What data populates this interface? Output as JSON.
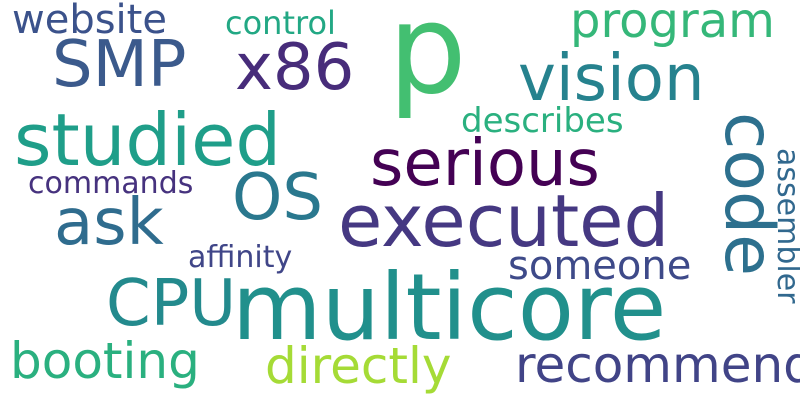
{
  "words": [
    {
      "id": "p",
      "text": "p",
      "color": "#43bf71"
    },
    {
      "id": "multicore",
      "text": "multicore",
      "color": "#21908c"
    },
    {
      "id": "executed",
      "text": "executed",
      "color": "#453882"
    },
    {
      "id": "studied",
      "text": "studied",
      "color": "#1f9e89"
    },
    {
      "id": "serious",
      "text": "serious",
      "color": "#440154"
    },
    {
      "id": "vision",
      "text": "vision",
      "color": "#26828e"
    },
    {
      "id": "sMP",
      "text": "SMP",
      "color": "#3b5a8c"
    },
    {
      "id": "x86",
      "text": "x86",
      "color": "#472c7a"
    },
    {
      "id": "code",
      "text": "code",
      "color": "#2d708e"
    },
    {
      "id": "os",
      "text": "OS",
      "color": "#2a788e"
    },
    {
      "id": "cpu",
      "text": "CPU",
      "color": "#238a8d"
    },
    {
      "id": "ask",
      "text": "ask",
      "color": "#2f6c8e"
    },
    {
      "id": "booting",
      "text": "booting",
      "color": "#2ab07f"
    },
    {
      "id": "directly",
      "text": "directly",
      "color": "#a5db36"
    },
    {
      "id": "recommend",
      "text": "recommend",
      "color": "#414487"
    },
    {
      "id": "program",
      "text": "program",
      "color": "#35b779"
    },
    {
      "id": "website",
      "text": "website",
      "color": "#3b528b"
    },
    {
      "id": "someone",
      "text": "someone",
      "color": "#3e4a89"
    },
    {
      "id": "describes",
      "text": "describes",
      "color": "#2ab07f"
    },
    {
      "id": "control",
      "text": "control",
      "color": "#22a884"
    },
    {
      "id": "commands",
      "text": "commands",
      "color": "#46327e"
    },
    {
      "id": "affinity",
      "text": "affinity",
      "color": "#404688"
    },
    {
      "id": "assembler",
      "text": "assembler",
      "color": "#31688e"
    }
  ]
}
